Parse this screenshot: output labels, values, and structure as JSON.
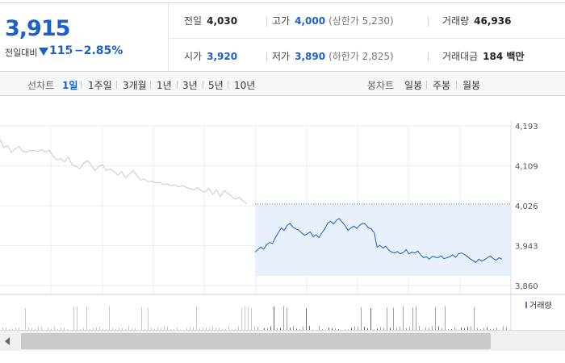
{
  "summary": {
    "price": "3,915",
    "change_label": "전일대비",
    "change_value": "115",
    "change_pct": "−2.85%",
    "prev_close": {
      "label": "전일",
      "value": "4,030"
    },
    "open": {
      "label": "시가",
      "value": "3,920"
    },
    "high": {
      "label": "고가",
      "value": "4,000",
      "sub": "(상한가 5,230)"
    },
    "low": {
      "label": "저가",
      "value": "3,890",
      "sub": "(하한가 2,825)"
    },
    "volume": {
      "label": "거래량",
      "value": "46,936"
    },
    "amount": {
      "label": "거래대금",
      "value": "184 백만"
    }
  },
  "toolbar": {
    "line_label": "선차트",
    "periods": [
      "1일",
      "1주일",
      "3개월",
      "1년",
      "3년",
      "5년",
      "10년"
    ],
    "active_period": "1일",
    "candle_label": "봉차트",
    "candles": [
      "일봉",
      "주봉",
      "월봉"
    ]
  },
  "chart_data": {
    "type": "line",
    "y_ticks": [
      "4,193",
      "4,109",
      "4,026",
      "3,943",
      "3,860"
    ],
    "ylim": [
      3860,
      4193
    ],
    "prev_close_line": 4030,
    "volume_legend": "거래량",
    "series": [
      {
        "values": [
          4165,
          4148,
          4152,
          4138,
          4145,
          4150,
          4140,
          4138,
          4142,
          4141,
          4140,
          4143,
          4138,
          4142,
          4130,
          4122,
          4125,
          4118,
          4128,
          4112,
          4108,
          4104,
          4115,
          4120,
          4112,
          4100,
          4108,
          4112,
          4100,
          4103,
          4098,
          4090,
          4098,
          4085,
          4092,
          4100,
          4090,
          4080,
          4082,
          4076,
          4078,
          4074,
          4075,
          4070,
          4072,
          4068,
          4070,
          4066,
          4068,
          4065,
          4062,
          4060,
          4064,
          4058,
          4055,
          4062,
          4050,
          4060,
          4045,
          4058,
          4052,
          4046,
          4040,
          4044,
          4036,
          4030
        ]
      },
      {
        "values": [
          3930,
          3935,
          3940,
          3936,
          3945,
          3950,
          3948,
          3960,
          3970,
          3980,
          3975,
          3985,
          3990,
          3982,
          3978,
          3976,
          3970,
          3965,
          3968,
          3972,
          3962,
          3966,
          3960,
          3970,
          3978,
          3990,
          3994,
          3988,
          3996,
          4000,
          3992,
          3985,
          3975,
          3980,
          3984,
          3979,
          3986,
          3990,
          3988,
          3980,
          3978,
          3970,
          3940,
          3944,
          3938,
          3942,
          3934,
          3930,
          3928,
          3931,
          3926,
          3929,
          3935,
          3926,
          3930,
          3928,
          3932,
          3924,
          3918,
          3920,
          3915,
          3921,
          3919,
          3918,
          3922,
          3916,
          3918,
          3920,
          3924,
          3919,
          3926,
          3928,
          3925,
          3921,
          3916,
          3912,
          3908,
          3915,
          3911,
          3914,
          3918,
          3922,
          3916,
          3913,
          3918,
          3915
        ]
      }
    ]
  },
  "colors": {
    "accent": "#1b5fcc",
    "area": "#e8f0fc",
    "prior_line": "#c8c8c8"
  }
}
